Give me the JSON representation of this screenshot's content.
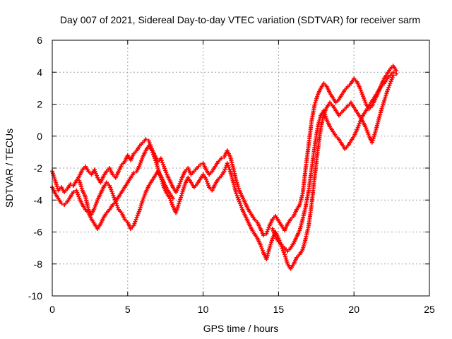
{
  "chart_data": {
    "type": "scatter",
    "title": "Day 007 of 2021, Sidereal Day-to-day VTEC variation (SDTVAR) for receiver sarm",
    "xlabel": "GPS time / hours",
    "ylabel": "SDTVAR / TECUs",
    "xlim": [
      0,
      25
    ],
    "ylim": [
      -10,
      6
    ],
    "xticks": [
      "0",
      "5",
      "10",
      "15",
      "20",
      "25"
    ],
    "yticks": [
      "-10",
      "-8",
      "-6",
      "-4",
      "-2",
      "0",
      "2",
      "4",
      "6"
    ],
    "grid": true,
    "marker": "plus",
    "color": "#ff0000",
    "series": [
      {
        "x": [
          0.0,
          0.2,
          0.4,
          0.6,
          0.8,
          1.0,
          1.2,
          1.4,
          1.6,
          1.8,
          2.0,
          2.2,
          2.4,
          2.6,
          2.8,
          3.0,
          3.2,
          3.4,
          3.6,
          3.8,
          4.0,
          4.2,
          4.4,
          4.6,
          4.8,
          5.0,
          5.2,
          5.4,
          5.6,
          5.8,
          6.0,
          6.2,
          6.4,
          6.6,
          6.8,
          7.0,
          7.2,
          7.4,
          7.6,
          7.8,
          8.0,
          8.2,
          8.4,
          8.6,
          8.8,
          9.0,
          9.2,
          9.4,
          9.6,
          9.8,
          10.0,
          10.2,
          10.4,
          10.6,
          10.8,
          11.0,
          11.2,
          11.4,
          11.6,
          11.8,
          12.0,
          12.2,
          12.4,
          12.6,
          12.8,
          13.0,
          13.2,
          13.4,
          13.6,
          13.8,
          14.0,
          14.2,
          14.4,
          14.6,
          14.8,
          15.0,
          15.2,
          15.4,
          15.6,
          15.8,
          16.0,
          16.2,
          16.4,
          16.6,
          16.8,
          17.0,
          17.2,
          17.4,
          17.6,
          17.8,
          18.0,
          18.2,
          18.4,
          18.6,
          18.8,
          19.0,
          19.2,
          19.4,
          19.6,
          19.8,
          20.0,
          20.2,
          20.4,
          20.6,
          20.8,
          21.0,
          21.2,
          21.4,
          21.6,
          21.8,
          22.0,
          22.2,
          22.4,
          22.6,
          22.8
        ],
        "y": [
          -2.2,
          -2.8,
          -3.4,
          -3.2,
          -3.5,
          -3.3,
          -3.0,
          -3.1,
          -2.8,
          -2.5,
          -2.1,
          -1.9,
          -2.2,
          -2.4,
          -2.1,
          -2.6,
          -2.9,
          -2.5,
          -2.2,
          -2.0,
          -2.4,
          -2.6,
          -2.2,
          -1.8,
          -1.6,
          -1.2,
          -1.5,
          -1.1,
          -0.9,
          -0.6,
          -0.4,
          -0.2,
          -0.3,
          -0.8,
          -1.2,
          -1.6,
          -1.4,
          -1.9,
          -2.4,
          -2.8,
          -3.2,
          -3.5,
          -3.1,
          -2.6,
          -2.2,
          -2.0,
          -2.4,
          -2.2,
          -2.0,
          -1.8,
          -1.7,
          -2.1,
          -2.4,
          -2.2,
          -1.9,
          -1.6,
          -1.4,
          -1.3,
          -0.9,
          -1.3,
          -2.0,
          -2.8,
          -3.4,
          -3.8,
          -4.2,
          -4.6,
          -4.9,
          -5.2,
          -5.4,
          -5.8,
          -6.2,
          -6.1,
          -5.6,
          -5.2,
          -5.0,
          -5.3,
          -5.6,
          -5.9,
          -5.5,
          -5.2,
          -5.0,
          -4.6,
          -4.3,
          -3.6,
          -2.0,
          -0.5,
          1.0,
          2.0,
          2.6,
          3.0,
          3.3,
          3.1,
          2.7,
          2.4,
          2.1,
          2.3,
          2.6,
          2.9,
          3.1,
          3.3,
          3.6,
          3.4,
          3.0,
          2.5,
          2.0,
          1.7,
          1.9,
          2.3,
          2.7,
          3.2,
          3.6,
          3.9,
          4.2,
          4.4,
          4.1
        ]
      },
      {
        "x": [
          0.0,
          0.2,
          0.4,
          0.6,
          0.8,
          1.0,
          1.2,
          1.4,
          1.6,
          1.8,
          2.0,
          2.2,
          2.4,
          2.6,
          2.8,
          3.0,
          3.2,
          3.4,
          3.6,
          3.8,
          4.0,
          4.2,
          4.4,
          4.6,
          4.8,
          5.0,
          5.2,
          5.4,
          5.6,
          5.8,
          6.0,
          6.2,
          6.4,
          6.6,
          6.8,
          7.0,
          7.2,
          7.4,
          7.6,
          7.8,
          8.0,
          8.2,
          8.4,
          8.6,
          8.8,
          9.0,
          9.2,
          9.4,
          9.6,
          9.8,
          10.0,
          10.2,
          10.4,
          10.6,
          10.8,
          11.0,
          11.2,
          11.4,
          11.6,
          11.8,
          12.0,
          12.2,
          12.4,
          12.6,
          12.8,
          13.0,
          13.2,
          13.4,
          13.6,
          13.8,
          14.0,
          14.2,
          14.4,
          14.6,
          14.8,
          15.0,
          15.2,
          15.4,
          15.6,
          15.8,
          16.0,
          16.2,
          16.4,
          16.6,
          16.8,
          17.0,
          17.2,
          17.4,
          17.6,
          17.8,
          18.0,
          18.2,
          18.4,
          18.6,
          18.8,
          19.0,
          19.2,
          19.4,
          19.6,
          19.8,
          20.0,
          20.2,
          20.4,
          20.6,
          20.8,
          21.0,
          21.2,
          21.4,
          21.6,
          21.8,
          22.0,
          22.2,
          22.4,
          22.6
        ],
        "y": [
          -3.2,
          -3.6,
          -3.9,
          -4.2,
          -4.3,
          -4.1,
          -3.8,
          -3.5,
          -3.4,
          -3.9,
          -4.3,
          -4.6,
          -4.8,
          -5.2,
          -5.5,
          -5.8,
          -5.5,
          -5.1,
          -4.8,
          -4.6,
          -4.3,
          -4.1,
          -3.8,
          -3.5,
          -3.2,
          -2.9,
          -2.6,
          -2.3,
          -2.2,
          -1.8,
          -1.3,
          -0.9,
          -0.6,
          -0.9,
          -1.4,
          -2.0,
          -2.6,
          -3.2,
          -3.6,
          -3.9,
          -4.4,
          -4.8,
          -4.2,
          -3.6,
          -3.0,
          -2.6,
          -2.9,
          -3.2,
          -3.0,
          -2.7,
          -2.4,
          -2.7,
          -3.2,
          -3.4,
          -3.0,
          -2.7,
          -2.5,
          -2.2,
          -1.7,
          -2.2,
          -2.9,
          -3.6,
          -4.1,
          -4.6,
          -5.0,
          -5.4,
          -5.8,
          -6.1,
          -6.4,
          -6.8,
          -7.3,
          -7.7,
          -7.0,
          -6.4,
          -6.0,
          -6.4,
          -6.9,
          -7.4,
          -8.0,
          -8.3,
          -8.0,
          -7.6,
          -7.4,
          -7.1,
          -6.4,
          -5.6,
          -4.2,
          -2.5,
          -0.9,
          0.5,
          1.4,
          1.8,
          2.1,
          1.9,
          1.6,
          1.3,
          1.5,
          1.7,
          1.9,
          2.1,
          1.8,
          1.5,
          1.2,
          0.9,
          0.5,
          0.0,
          -0.4,
          0.2,
          0.9,
          1.6,
          2.2,
          2.8,
          3.3,
          3.8
        ]
      },
      {
        "x": [
          1.8,
          2.0,
          2.2,
          2.4,
          2.6,
          2.8,
          3.0,
          3.2,
          3.4,
          3.6,
          3.8,
          4.0,
          4.2,
          4.4,
          4.6,
          4.8,
          5.0,
          5.2,
          5.4,
          5.6,
          5.8,
          6.0,
          6.2,
          6.4,
          6.6,
          6.8,
          7.0,
          7.2,
          7.4,
          7.6,
          7.8,
          8.0,
          14.6,
          14.8,
          15.0,
          15.2,
          15.4,
          15.6,
          15.8,
          16.0,
          16.2,
          16.4,
          16.6,
          16.8,
          17.0,
          17.2,
          17.4,
          17.6,
          17.8,
          18.0,
          18.2,
          18.4,
          18.6,
          18.8,
          19.0,
          19.2,
          19.4,
          19.6,
          19.8,
          20.0,
          20.2,
          20.4,
          20.6,
          20.8,
          21.0,
          21.2,
          21.4,
          21.6,
          21.8,
          22.0,
          22.2,
          22.4,
          22.6,
          22.8
        ],
        "y": [
          -2.8,
          -3.4,
          -3.8,
          -4.6,
          -4.9,
          -4.5,
          -4.0,
          -3.6,
          -3.2,
          -2.9,
          -3.1,
          -3.6,
          -4.1,
          -4.6,
          -4.8,
          -5.2,
          -5.4,
          -5.8,
          -5.6,
          -5.1,
          -4.6,
          -4.0,
          -3.5,
          -3.1,
          -2.8,
          -2.5,
          -2.2,
          -2.5,
          -2.9,
          -3.3,
          -3.6,
          -3.9,
          -5.8,
          -6.3,
          -6.6,
          -6.8,
          -7.0,
          -7.2,
          -7.0,
          -6.7,
          -6.3,
          -5.9,
          -5.2,
          -4.4,
          -3.4,
          -2.0,
          -0.6,
          0.6,
          1.3,
          1.6,
          1.0,
          0.6,
          0.3,
          0.0,
          -0.2,
          -0.5,
          -0.8,
          -0.6,
          -0.3,
          0.0,
          0.4,
          0.9,
          1.3,
          1.6,
          1.9,
          2.2,
          2.5,
          2.8,
          3.1,
          3.3,
          3.6,
          3.8,
          4.0,
          3.9
        ]
      }
    ]
  }
}
